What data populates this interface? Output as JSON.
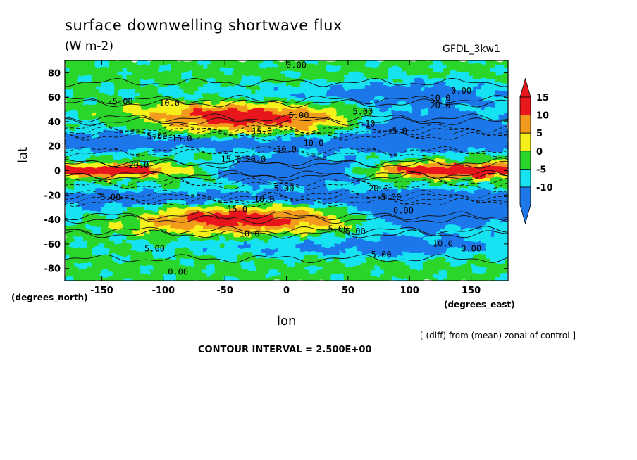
{
  "chart_data": {
    "type": "heatmap",
    "title": "surface downwelling shortwave flux",
    "units": "(W m-2)",
    "model": "GFDL_3kw1",
    "xlabel": "lon",
    "ylabel": "lat",
    "x_units_label": "(degrees_east)",
    "y_units_label": "(degrees_north)",
    "note": "[ (diff) from (mean) zonal of control ]",
    "contour_interval_text": "CONTOUR INTERVAL = 2.500E+00",
    "xlim": [
      -180,
      180
    ],
    "ylim": [
      -90,
      90
    ],
    "x_ticks": [
      -150,
      -100,
      -50,
      0,
      50,
      100,
      150
    ],
    "y_ticks": [
      80,
      60,
      40,
      20,
      0,
      -20,
      -40,
      -60,
      -80
    ],
    "x_tick_labels": [
      "-150",
      "-100",
      "-50",
      "0",
      "50",
      "100",
      "150"
    ],
    "y_tick_labels": [
      "80",
      "60",
      "40",
      "20",
      "0",
      "-20",
      "-40",
      "-60",
      "-80"
    ],
    "colorbar": {
      "labels": [
        "15",
        "10",
        "5",
        "0",
        "-5",
        "-10"
      ],
      "levels": [
        {
          "min": 15,
          "color": "#e8181c"
        },
        {
          "min": 10,
          "color": "#f29b1e"
        },
        {
          "min": 5,
          "color": "#f6f01a"
        },
        {
          "min": 0,
          "color": "#2bd62b"
        },
        {
          "min": -5,
          "color": "#18e3f2"
        },
        {
          "min": -10,
          "color": "#1e78ea"
        }
      ]
    },
    "contour_labels": [
      {
        "text": "0.00",
        "lon": 8,
        "lat": 86
      },
      {
        "text": "10.0",
        "lon": 125,
        "lat": 59
      },
      {
        "text": "20.0",
        "lon": 125,
        "lat": 53
      },
      {
        "text": "0.00",
        "lon": 142,
        "lat": 65
      },
      {
        "text": "-5.00",
        "lon": -135,
        "lat": 56
      },
      {
        "text": "10.0",
        "lon": -95,
        "lat": 55
      },
      {
        "text": "5.00",
        "lon": 10,
        "lat": 45
      },
      {
        "text": "5.00",
        "lon": 62,
        "lat": 48
      },
      {
        "text": "10",
        "lon": 68,
        "lat": 38
      },
      {
        "text": "15.0",
        "lon": -20,
        "lat": 32
      },
      {
        "text": "5.0",
        "lon": 92,
        "lat": 32
      },
      {
        "text": "5.00",
        "lon": -105,
        "lat": 28
      },
      {
        "text": "15.0",
        "lon": -85,
        "lat": 26
      },
      {
        "text": "10.0",
        "lon": 22,
        "lat": 22
      },
      {
        "text": "30.0",
        "lon": 0,
        "lat": 17
      },
      {
        "text": "15.0",
        "lon": -45,
        "lat": 9
      },
      {
        "text": "20.0",
        "lon": -25,
        "lat": 9
      },
      {
        "text": "20.0",
        "lon": -120,
        "lat": 4
      },
      {
        "text": "5.00",
        "lon": -2,
        "lat": -15
      },
      {
        "text": "20.0",
        "lon": 75,
        "lat": -15
      },
      {
        "text": "5.00",
        "lon": 85,
        "lat": -22
      },
      {
        "text": "-5.00",
        "lon": -145,
        "lat": -22
      },
      {
        "text": "10.0",
        "lon": -18,
        "lat": -24
      },
      {
        "text": "15.0",
        "lon": -40,
        "lat": -32
      },
      {
        "text": "0.00",
        "lon": 95,
        "lat": -33
      },
      {
        "text": "5.00",
        "lon": 42,
        "lat": -48
      },
      {
        "text": "5.00",
        "lon": 56,
        "lat": -50
      },
      {
        "text": "10.0",
        "lon": -30,
        "lat": -52
      },
      {
        "text": "10.0",
        "lon": 127,
        "lat": -60
      },
      {
        "text": "0.00",
        "lon": 150,
        "lat": -64
      },
      {
        "text": "5.00",
        "lon": -107,
        "lat": -64
      },
      {
        "text": "-5.00",
        "lon": 75,
        "lat": -69
      },
      {
        "text": "0.00",
        "lon": -88,
        "lat": -83
      }
    ]
  }
}
